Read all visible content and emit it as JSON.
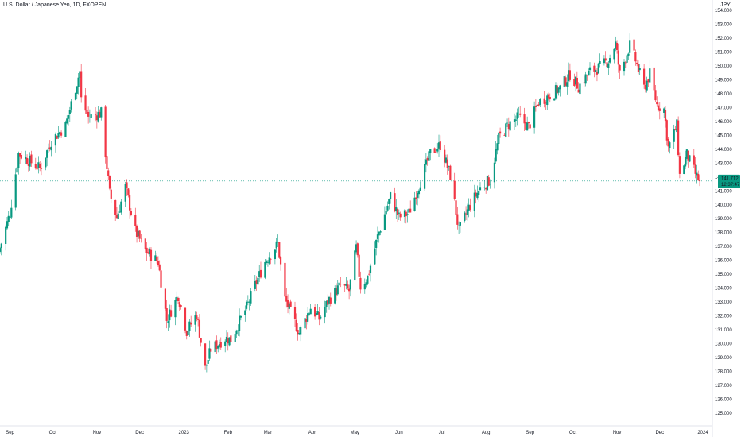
{
  "header": {
    "title": "U.S. Dollar / Japanese Yen, 1D, FXOPEN",
    "currency": "JPY"
  },
  "price_tag": {
    "price": "141.712",
    "countdown": "12:37:47"
  },
  "colors": {
    "up": "#089981",
    "down": "#f23645",
    "crosshair": "#089981",
    "axis_line": "#e0e3eb"
  },
  "chart_data": {
    "type": "candlestick",
    "title": "U.S. Dollar / Japanese Yen, 1D, FXOPEN",
    "ylim": [
      125,
      154
    ],
    "x_tick_labels": [
      "Sep",
      "Oct",
      "Nov",
      "Dec",
      "2023",
      "Feb",
      "Mar",
      "Apr",
      "May",
      "Jun",
      "Jul",
      "Aug",
      "Sep",
      "Oct",
      "Nov",
      "Dec",
      "2024"
    ],
    "y_tick_labels": [
      "125.000",
      "126.000",
      "127.000",
      "128.000",
      "129.000",
      "130.000",
      "131.000",
      "132.000",
      "133.000",
      "134.000",
      "135.000",
      "136.000",
      "137.000",
      "138.000",
      "139.000",
      "140.000",
      "141.000",
      "142.000",
      "143.000",
      "144.000",
      "145.000",
      "146.000",
      "147.000",
      "148.000",
      "149.000",
      "150.000",
      "151.000",
      "152.000",
      "153.000",
      "154.000"
    ],
    "last_price": 141.712,
    "close_path": [
      {
        "date": "2022-08-25",
        "close": 136.9
      },
      {
        "date": "2022-09-01",
        "close": 139.4
      },
      {
        "date": "2022-09-07",
        "close": 143.7
      },
      {
        "date": "2022-09-14",
        "close": 143.2
      },
      {
        "date": "2022-09-22",
        "close": 142.6
      },
      {
        "date": "2022-09-30",
        "close": 144.6
      },
      {
        "date": "2022-10-10",
        "close": 145.7
      },
      {
        "date": "2022-10-20",
        "close": 149.6
      },
      {
        "date": "2022-10-21",
        "close": 147.6
      },
      {
        "date": "2022-10-26",
        "close": 146.3
      },
      {
        "date": "2022-11-04",
        "close": 146.6
      },
      {
        "date": "2022-11-10",
        "close": 140.8
      },
      {
        "date": "2022-11-15",
        "close": 139.1
      },
      {
        "date": "2022-11-21",
        "close": 141.3
      },
      {
        "date": "2022-11-28",
        "close": 138.1
      },
      {
        "date": "2022-12-05",
        "close": 136.7
      },
      {
        "date": "2022-12-14",
        "close": 135.9
      },
      {
        "date": "2022-12-20",
        "close": 131.7
      },
      {
        "date": "2022-12-28",
        "close": 133.5
      },
      {
        "date": "2023-01-03",
        "close": 130.9
      },
      {
        "date": "2023-01-10",
        "close": 132.1
      },
      {
        "date": "2023-01-16",
        "close": 128.2
      },
      {
        "date": "2023-01-20",
        "close": 129.6
      },
      {
        "date": "2023-01-30",
        "close": 130.4
      },
      {
        "date": "2023-02-03",
        "close": 130.3
      },
      {
        "date": "2023-02-08",
        "close": 131.4
      },
      {
        "date": "2023-02-14",
        "close": 132.6
      },
      {
        "date": "2023-02-20",
        "close": 134.2
      },
      {
        "date": "2023-02-27",
        "close": 135.9
      },
      {
        "date": "2023-03-08",
        "close": 137.2
      },
      {
        "date": "2023-03-13",
        "close": 133.2
      },
      {
        "date": "2023-03-23",
        "close": 130.8
      },
      {
        "date": "2023-03-31",
        "close": 132.6
      },
      {
        "date": "2023-04-06",
        "close": 131.8
      },
      {
        "date": "2023-04-13",
        "close": 133.2
      },
      {
        "date": "2023-04-21",
        "close": 134.2
      },
      {
        "date": "2023-04-27",
        "close": 133.8
      },
      {
        "date": "2023-05-02",
        "close": 136.9
      },
      {
        "date": "2023-05-05",
        "close": 134.1
      },
      {
        "date": "2023-05-10",
        "close": 134.8
      },
      {
        "date": "2023-05-17",
        "close": 137.7
      },
      {
        "date": "2023-05-26",
        "close": 140.6
      },
      {
        "date": "2023-06-01",
        "close": 139.1
      },
      {
        "date": "2023-06-08",
        "close": 139.4
      },
      {
        "date": "2023-06-16",
        "close": 141.7
      },
      {
        "date": "2023-06-23",
        "close": 143.7
      },
      {
        "date": "2023-06-30",
        "close": 144.3
      },
      {
        "date": "2023-07-07",
        "close": 142.1
      },
      {
        "date": "2023-07-13",
        "close": 138.1
      },
      {
        "date": "2023-07-20",
        "close": 139.8
      },
      {
        "date": "2023-07-28",
        "close": 141.2
      },
      {
        "date": "2023-08-04",
        "close": 141.8
      },
      {
        "date": "2023-08-10",
        "close": 144.8
      },
      {
        "date": "2023-08-17",
        "close": 145.8
      },
      {
        "date": "2023-08-24",
        "close": 146.3
      },
      {
        "date": "2023-08-31",
        "close": 145.6
      },
      {
        "date": "2023-09-07",
        "close": 147.4
      },
      {
        "date": "2023-09-15",
        "close": 147.9
      },
      {
        "date": "2023-09-22",
        "close": 148.4
      },
      {
        "date": "2023-09-29",
        "close": 149.4
      },
      {
        "date": "2023-10-05",
        "close": 148.5
      },
      {
        "date": "2023-10-13",
        "close": 149.6
      },
      {
        "date": "2023-10-20",
        "close": 149.9
      },
      {
        "date": "2023-10-26",
        "close": 150.4
      },
      {
        "date": "2023-10-31",
        "close": 151.6
      },
      {
        "date": "2023-11-03",
        "close": 149.4
      },
      {
        "date": "2023-11-10",
        "close": 151.5
      },
      {
        "date": "2023-11-14",
        "close": 150.4
      },
      {
        "date": "2023-11-20",
        "close": 148.4
      },
      {
        "date": "2023-11-24",
        "close": 149.4
      },
      {
        "date": "2023-11-29",
        "close": 147.2
      },
      {
        "date": "2023-12-04",
        "close": 146.9
      },
      {
        "date": "2023-12-07",
        "close": 144.1
      },
      {
        "date": "2023-12-13",
        "close": 145.7
      },
      {
        "date": "2023-12-15",
        "close": 142.1
      },
      {
        "date": "2023-12-20",
        "close": 143.6
      },
      {
        "date": "2023-12-27",
        "close": 142.0
      },
      {
        "date": "2023-12-29",
        "close": 141.7
      }
    ]
  }
}
